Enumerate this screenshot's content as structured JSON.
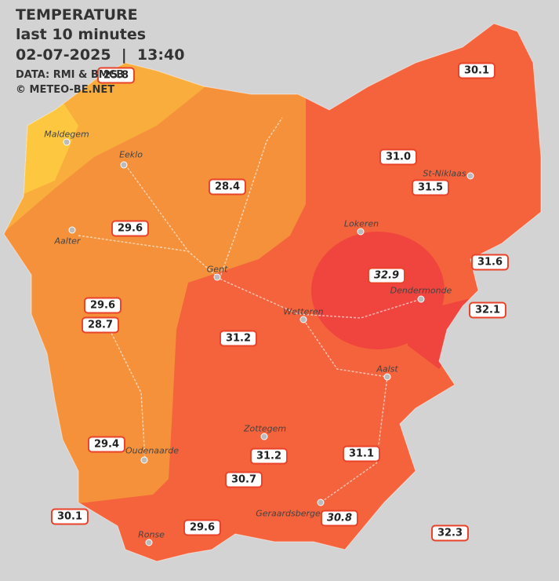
{
  "header": {
    "title": "TEMPERATURE",
    "subtitle": "last 10 minutes",
    "datetime": "02-07-2025  |  13:40",
    "source": "DATA: RMI & BMCB",
    "copyright": "© METEO-BE.NET"
  },
  "stations": [
    {
      "value": "25.8"
    },
    {
      "value": "30.1"
    },
    {
      "value": "31.0"
    },
    {
      "value": "31.5"
    },
    {
      "value": "28.4"
    },
    {
      "value": "29.6"
    },
    {
      "value": "31.6"
    },
    {
      "value": "32.9",
      "style": "italic"
    },
    {
      "value": "32.1"
    },
    {
      "value": "29.6"
    },
    {
      "value": "28.7"
    },
    {
      "value": "31.2"
    },
    {
      "value": "29.4"
    },
    {
      "value": "31.2"
    },
    {
      "value": "31.1"
    },
    {
      "value": "30.7"
    },
    {
      "value": "30.1"
    },
    {
      "value": "30.8",
      "style": "italic"
    },
    {
      "value": "29.6"
    },
    {
      "value": "32.3"
    }
  ],
  "cities": [
    "Maldegem",
    "Eeklo",
    "Aalter",
    "Gent",
    "Lokeren",
    "St-Niklaas",
    "Dendermonde",
    "Wetteren",
    "Aalst",
    "Zottegem",
    "Oudenaarde",
    "Geraardsbergen",
    "Ronse"
  ]
}
